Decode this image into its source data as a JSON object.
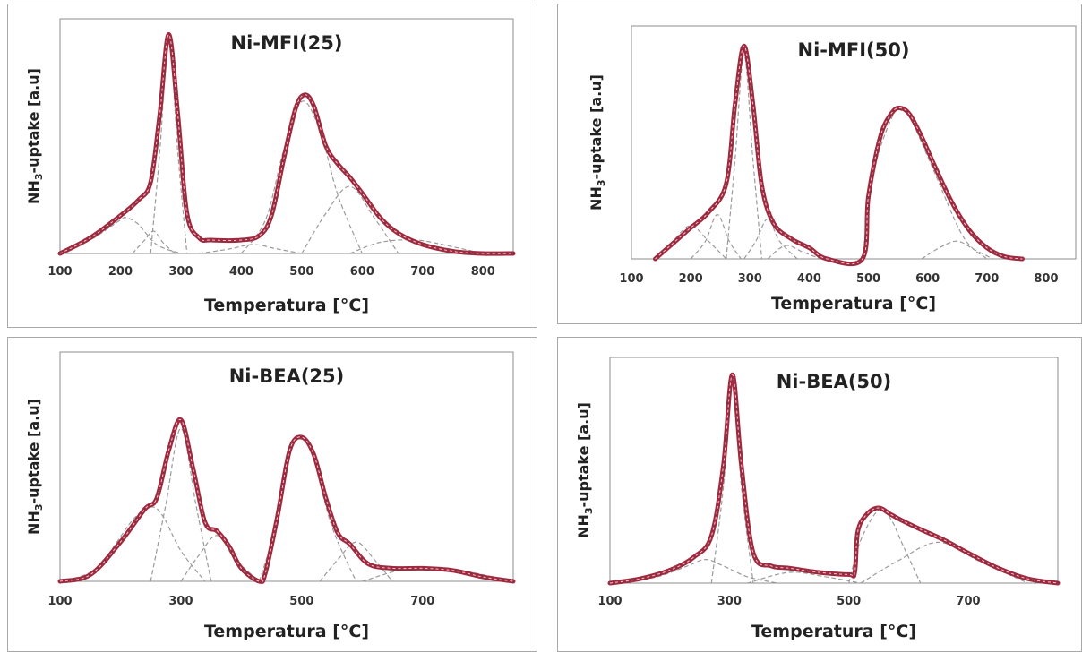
{
  "chart_data": [
    {
      "type": "line",
      "title": "Ni-MFI(25)",
      "xlabel": "Temperatura [°C]",
      "ylabel": "NH3-uptake [a.u]",
      "xlim": [
        100,
        850
      ],
      "xticks": [
        100,
        200,
        300,
        400,
        500,
        600,
        700,
        800
      ],
      "ylim": [
        0,
        1.05
      ],
      "grid": false,
      "series": [
        {
          "role": "total",
          "color": "#9e2a3f",
          "x": [
            100,
            150,
            200,
            230,
            250,
            265,
            280,
            295,
            310,
            330,
            350,
            400,
            430,
            450,
            470,
            490,
            505,
            520,
            540,
            560,
            580,
            600,
            630,
            660,
            700,
            750,
            800,
            850
          ],
          "y": [
            0.0,
            0.07,
            0.17,
            0.24,
            0.32,
            0.62,
            0.98,
            0.62,
            0.18,
            0.07,
            0.06,
            0.06,
            0.08,
            0.17,
            0.42,
            0.65,
            0.71,
            0.66,
            0.48,
            0.4,
            0.34,
            0.27,
            0.16,
            0.09,
            0.04,
            0.01,
            0.0,
            0.0
          ]
        },
        {
          "role": "component",
          "x": [
            100,
            150,
            200,
            210,
            230,
            260,
            300
          ],
          "y": [
            0.0,
            0.06,
            0.15,
            0.16,
            0.13,
            0.04,
            0.0
          ]
        },
        {
          "role": "component",
          "x": [
            220,
            240,
            255,
            270,
            290
          ],
          "y": [
            0.0,
            0.06,
            0.1,
            0.05,
            0.0
          ]
        },
        {
          "role": "component",
          "x": [
            250,
            265,
            280,
            295,
            310
          ],
          "y": [
            0.0,
            0.45,
            0.96,
            0.45,
            0.0
          ]
        },
        {
          "role": "component",
          "x": [
            330,
            380,
            420,
            460,
            500
          ],
          "y": [
            0.0,
            0.02,
            0.04,
            0.02,
            0.0
          ]
        },
        {
          "role": "component",
          "x": [
            400,
            440,
            470,
            500,
            530,
            560,
            600
          ],
          "y": [
            0.0,
            0.15,
            0.46,
            0.68,
            0.55,
            0.26,
            0.0
          ]
        },
        {
          "role": "component",
          "x": [
            500,
            540,
            580,
            620,
            660
          ],
          "y": [
            0.0,
            0.18,
            0.3,
            0.16,
            0.0
          ]
        },
        {
          "role": "component",
          "x": [
            580,
            630,
            690,
            750,
            800
          ],
          "y": [
            0.0,
            0.05,
            0.06,
            0.03,
            0.0
          ]
        }
      ]
    },
    {
      "type": "line",
      "title": "Ni-MFI(50)",
      "xlabel": "Temperatura [°C]",
      "ylabel": "NH3-uptake [a.u]",
      "xlim": [
        100,
        850
      ],
      "xticks": [
        100,
        200,
        300,
        400,
        500,
        600,
        700,
        800
      ],
      "ylim": [
        0,
        1.05
      ],
      "grid": false,
      "series": [
        {
          "role": "total",
          "color": "#9e2a3f",
          "x": [
            140,
            170,
            200,
            230,
            260,
            275,
            290,
            305,
            320,
            340,
            370,
            400,
            430,
            490,
            500,
            520,
            540,
            555,
            570,
            590,
            610,
            640,
            670,
            700,
            730,
            760
          ],
          "y": [
            0.0,
            0.07,
            0.14,
            0.21,
            0.34,
            0.7,
            0.96,
            0.7,
            0.33,
            0.16,
            0.09,
            0.05,
            0.0,
            0.0,
            0.28,
            0.55,
            0.66,
            0.68,
            0.65,
            0.55,
            0.43,
            0.26,
            0.13,
            0.05,
            0.01,
            0.0
          ]
        },
        {
          "role": "component",
          "x": [
            140,
            170,
            200,
            230,
            260
          ],
          "y": [
            0.0,
            0.08,
            0.15,
            0.08,
            0.0
          ]
        },
        {
          "role": "component",
          "x": [
            200,
            225,
            245,
            265,
            285
          ],
          "y": [
            0.0,
            0.08,
            0.2,
            0.08,
            0.0
          ]
        },
        {
          "role": "component",
          "x": [
            260,
            275,
            290,
            305,
            320
          ],
          "y": [
            0.0,
            0.45,
            0.92,
            0.45,
            0.0
          ]
        },
        {
          "role": "component",
          "x": [
            290,
            310,
            330,
            350,
            380
          ],
          "y": [
            0.0,
            0.08,
            0.18,
            0.08,
            0.0
          ]
        },
        {
          "role": "component",
          "x": [
            330,
            360,
            390,
            420
          ],
          "y": [
            0.0,
            0.06,
            0.03,
            0.0
          ]
        },
        {
          "role": "component",
          "x": [
            490,
            510,
            540,
            555,
            570,
            610,
            660,
            700
          ],
          "y": [
            0.0,
            0.4,
            0.64,
            0.67,
            0.64,
            0.4,
            0.1,
            0.0
          ]
        },
        {
          "role": "component",
          "x": [
            590,
            620,
            650,
            680,
            710
          ],
          "y": [
            0.0,
            0.05,
            0.08,
            0.04,
            0.0
          ]
        }
      ]
    },
    {
      "type": "line",
      "title": "Ni-BEA(25)",
      "xlabel": "Temperatura [°C]",
      "ylabel": "NH3-uptake [a.u]",
      "xlim": [
        100,
        850
      ],
      "xticks": [
        100,
        300,
        500,
        700
      ],
      "ylim": [
        0,
        1.05
      ],
      "grid": false,
      "series": [
        {
          "role": "total",
          "color": "#9e2a3f",
          "x": [
            100,
            150,
            200,
            240,
            260,
            280,
            300,
            320,
            340,
            360,
            380,
            400,
            430,
            440,
            460,
            480,
            500,
            520,
            540,
            560,
            580,
            610,
            650,
            700,
            750,
            800,
            850
          ],
          "y": [
            0.0,
            0.03,
            0.18,
            0.33,
            0.38,
            0.6,
            0.74,
            0.52,
            0.27,
            0.23,
            0.16,
            0.06,
            0.0,
            0.04,
            0.3,
            0.6,
            0.66,
            0.58,
            0.38,
            0.22,
            0.17,
            0.08,
            0.06,
            0.06,
            0.05,
            0.02,
            0.0
          ]
        },
        {
          "role": "component",
          "x": [
            100,
            160,
            220,
            250,
            270,
            300,
            340
          ],
          "y": [
            0.0,
            0.06,
            0.28,
            0.34,
            0.3,
            0.14,
            0.0
          ]
        },
        {
          "role": "component",
          "x": [
            250,
            275,
            300,
            325,
            350
          ],
          "y": [
            0.0,
            0.35,
            0.7,
            0.35,
            0.0
          ]
        },
        {
          "role": "component",
          "x": [
            300,
            330,
            360,
            390,
            430
          ],
          "y": [
            0.0,
            0.12,
            0.21,
            0.1,
            0.0
          ]
        },
        {
          "role": "component",
          "x": [
            430,
            460,
            480,
            500,
            520,
            550,
            590
          ],
          "y": [
            0.0,
            0.28,
            0.58,
            0.66,
            0.56,
            0.25,
            0.0
          ]
        },
        {
          "role": "component",
          "x": [
            530,
            560,
            590,
            620,
            650
          ],
          "y": [
            0.0,
            0.1,
            0.18,
            0.1,
            0.0
          ]
        },
        {
          "role": "component",
          "x": [
            600,
            680,
            760,
            850
          ],
          "y": [
            0.0,
            0.06,
            0.05,
            0.0
          ]
        }
      ]
    },
    {
      "type": "line",
      "title": "Ni-BEA(50)",
      "xlabel": "Temperatura [°C]",
      "ylabel": "NH3-uptake [a.u]",
      "xlim": [
        100,
        850
      ],
      "xticks": [
        100,
        300,
        500,
        700
      ],
      "ylim": [
        0,
        1.05
      ],
      "grid": false,
      "series": [
        {
          "role": "total",
          "color": "#9e2a3f",
          "x": [
            100,
            150,
            200,
            240,
            270,
            290,
            305,
            320,
            340,
            370,
            400,
            450,
            500,
            510,
            515,
            530,
            550,
            570,
            590,
            620,
            660,
            700,
            750,
            800,
            850
          ],
          "y": [
            0.0,
            0.02,
            0.06,
            0.12,
            0.22,
            0.55,
            0.97,
            0.55,
            0.14,
            0.08,
            0.07,
            0.05,
            0.04,
            0.05,
            0.24,
            0.32,
            0.35,
            0.32,
            0.29,
            0.25,
            0.2,
            0.14,
            0.07,
            0.02,
            0.0
          ]
        },
        {
          "role": "component",
          "x": [
            120,
            180,
            230,
            260,
            290,
            330,
            380
          ],
          "y": [
            0.0,
            0.03,
            0.08,
            0.11,
            0.08,
            0.03,
            0.0
          ]
        },
        {
          "role": "component",
          "x": [
            270,
            290,
            305,
            320,
            340
          ],
          "y": [
            0.0,
            0.45,
            0.95,
            0.45,
            0.0
          ]
        },
        {
          "role": "component",
          "x": [
            330,
            400,
            460,
            520
          ],
          "y": [
            0.0,
            0.05,
            0.03,
            0.0
          ]
        },
        {
          "role": "component",
          "x": [
            500,
            520,
            550,
            570,
            590,
            620
          ],
          "y": [
            0.0,
            0.2,
            0.34,
            0.3,
            0.18,
            0.0
          ]
        },
        {
          "role": "component",
          "x": [
            520,
            580,
            650,
            720,
            800
          ],
          "y": [
            0.0,
            0.1,
            0.19,
            0.1,
            0.0
          ]
        }
      ]
    }
  ]
}
